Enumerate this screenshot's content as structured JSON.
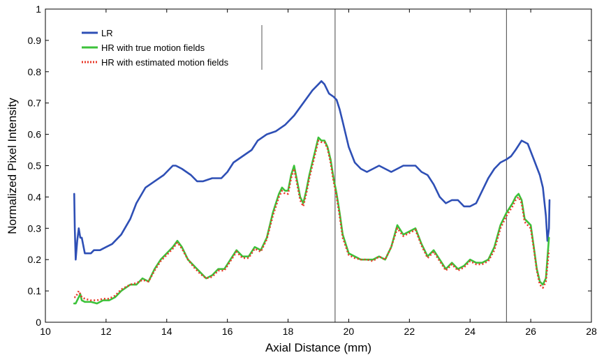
{
  "chart_data": {
    "type": "line",
    "title": "",
    "xlabel": "Axial Distance (mm)",
    "ylabel": "Normalized Pixel Intensity",
    "xlim": [
      10,
      28
    ],
    "ylim": [
      0,
      1
    ],
    "xticks": [
      10,
      12,
      14,
      16,
      18,
      20,
      22,
      24,
      26,
      28
    ],
    "yticks": [
      0,
      0.1,
      0.2,
      0.3,
      0.4,
      0.5,
      0.6,
      0.7,
      0.8,
      0.9,
      1
    ],
    "xtick_labels": [
      "10",
      "12",
      "14",
      "16",
      "18",
      "20",
      "22",
      "24",
      "26",
      "28"
    ],
    "ytick_labels": [
      "0",
      "0.1",
      "0.2",
      "0.3",
      "0.4",
      "0.5",
      "0.6",
      "0.7",
      "0.8",
      "0.9",
      "1"
    ],
    "grid": false,
    "legend_position": "top-left",
    "vertical_lines": [
      19.55,
      25.2
    ],
    "series": [
      {
        "name": "LR",
        "color": "#2e4fb5",
        "style": "solid",
        "x": [
          10.95,
          10.97,
          11.0,
          11.05,
          11.1,
          11.15,
          11.2,
          11.3,
          11.4,
          11.5,
          11.6,
          11.8,
          12.0,
          12.2,
          12.5,
          12.8,
          13.0,
          13.3,
          13.6,
          13.9,
          14.2,
          14.3,
          14.5,
          14.8,
          15.0,
          15.2,
          15.5,
          15.8,
          16.0,
          16.2,
          16.5,
          16.8,
          17.0,
          17.3,
          17.6,
          17.9,
          18.2,
          18.5,
          18.8,
          19.0,
          19.1,
          19.2,
          19.35,
          19.5,
          19.6,
          19.7,
          19.8,
          20.0,
          20.2,
          20.4,
          20.6,
          20.8,
          21.0,
          21.2,
          21.4,
          21.6,
          21.8,
          22.0,
          22.2,
          22.4,
          22.6,
          22.8,
          23.0,
          23.2,
          23.4,
          23.6,
          23.8,
          24.0,
          24.2,
          24.4,
          24.6,
          24.8,
          25.0,
          25.2,
          25.35,
          25.5,
          25.7,
          25.9,
          26.1,
          26.3,
          26.4,
          26.5,
          26.55,
          26.6,
          26.62
        ],
        "values": [
          0.41,
          0.3,
          0.2,
          0.26,
          0.3,
          0.27,
          0.27,
          0.22,
          0.22,
          0.22,
          0.23,
          0.23,
          0.24,
          0.25,
          0.28,
          0.33,
          0.38,
          0.43,
          0.45,
          0.47,
          0.5,
          0.5,
          0.49,
          0.47,
          0.45,
          0.45,
          0.46,
          0.46,
          0.48,
          0.51,
          0.53,
          0.55,
          0.58,
          0.6,
          0.61,
          0.63,
          0.66,
          0.7,
          0.74,
          0.76,
          0.77,
          0.76,
          0.73,
          0.72,
          0.71,
          0.68,
          0.64,
          0.56,
          0.51,
          0.49,
          0.48,
          0.49,
          0.5,
          0.49,
          0.48,
          0.49,
          0.5,
          0.5,
          0.5,
          0.48,
          0.47,
          0.44,
          0.4,
          0.38,
          0.39,
          0.39,
          0.37,
          0.37,
          0.38,
          0.42,
          0.46,
          0.49,
          0.51,
          0.52,
          0.53,
          0.55,
          0.58,
          0.57,
          0.52,
          0.47,
          0.43,
          0.34,
          0.26,
          0.3,
          0.39
        ]
      },
      {
        "name": "HR with true motion fields",
        "color": "#3cc23a",
        "style": "solid",
        "x": [
          10.95,
          11.0,
          11.1,
          11.15,
          11.2,
          11.3,
          11.5,
          11.7,
          11.9,
          12.1,
          12.3,
          12.5,
          12.8,
          13.0,
          13.2,
          13.4,
          13.6,
          13.8,
          14.0,
          14.2,
          14.35,
          14.5,
          14.7,
          14.9,
          15.1,
          15.3,
          15.5,
          15.7,
          15.9,
          16.1,
          16.3,
          16.5,
          16.7,
          16.9,
          17.1,
          17.3,
          17.5,
          17.7,
          17.8,
          17.9,
          18.0,
          18.1,
          18.2,
          18.3,
          18.4,
          18.5,
          18.6,
          18.7,
          18.8,
          18.9,
          19.0,
          19.1,
          19.2,
          19.3,
          19.4,
          19.5,
          19.6,
          19.7,
          19.8,
          20.0,
          20.2,
          20.4,
          20.6,
          20.8,
          21.0,
          21.2,
          21.4,
          21.6,
          21.8,
          22.0,
          22.2,
          22.4,
          22.6,
          22.8,
          23.0,
          23.2,
          23.4,
          23.6,
          23.8,
          24.0,
          24.2,
          24.4,
          24.6,
          24.8,
          25.0,
          25.2,
          25.4,
          25.5,
          25.6,
          25.7,
          25.8,
          25.9,
          26.0,
          26.1,
          26.2,
          26.3,
          26.4,
          26.5,
          26.6
        ],
        "values": [
          0.06,
          0.06,
          0.08,
          0.09,
          0.07,
          0.065,
          0.065,
          0.06,
          0.07,
          0.07,
          0.08,
          0.1,
          0.12,
          0.12,
          0.14,
          0.13,
          0.17,
          0.2,
          0.22,
          0.24,
          0.26,
          0.24,
          0.2,
          0.18,
          0.16,
          0.14,
          0.15,
          0.17,
          0.17,
          0.2,
          0.23,
          0.21,
          0.21,
          0.24,
          0.23,
          0.27,
          0.35,
          0.41,
          0.43,
          0.42,
          0.42,
          0.47,
          0.5,
          0.45,
          0.4,
          0.38,
          0.42,
          0.47,
          0.51,
          0.55,
          0.59,
          0.58,
          0.58,
          0.56,
          0.52,
          0.46,
          0.41,
          0.35,
          0.28,
          0.22,
          0.21,
          0.2,
          0.2,
          0.2,
          0.21,
          0.2,
          0.24,
          0.31,
          0.28,
          0.29,
          0.3,
          0.25,
          0.21,
          0.23,
          0.2,
          0.17,
          0.19,
          0.17,
          0.18,
          0.2,
          0.19,
          0.19,
          0.2,
          0.24,
          0.31,
          0.35,
          0.38,
          0.4,
          0.41,
          0.39,
          0.33,
          0.32,
          0.31,
          0.24,
          0.17,
          0.13,
          0.12,
          0.14,
          0.27
        ]
      },
      {
        "name": "HR with estimated motion fields",
        "color": "#e83a2a",
        "style": "dotted",
        "x": [
          10.95,
          11.0,
          11.1,
          11.15,
          11.2,
          11.3,
          11.5,
          11.7,
          11.9,
          12.1,
          12.3,
          12.5,
          12.8,
          13.0,
          13.2,
          13.4,
          13.6,
          13.8,
          14.0,
          14.2,
          14.35,
          14.5,
          14.7,
          14.9,
          15.1,
          15.3,
          15.5,
          15.7,
          15.9,
          16.1,
          16.3,
          16.5,
          16.7,
          16.9,
          17.1,
          17.3,
          17.5,
          17.7,
          17.8,
          17.9,
          18.0,
          18.1,
          18.2,
          18.3,
          18.4,
          18.5,
          18.6,
          18.7,
          18.8,
          18.9,
          19.0,
          19.1,
          19.2,
          19.3,
          19.4,
          19.5,
          19.6,
          19.7,
          19.8,
          20.0,
          20.2,
          20.4,
          20.6,
          20.8,
          21.0,
          21.2,
          21.4,
          21.6,
          21.8,
          22.0,
          22.2,
          22.4,
          22.6,
          22.8,
          23.0,
          23.2,
          23.4,
          23.6,
          23.8,
          24.0,
          24.2,
          24.4,
          24.6,
          24.8,
          25.0,
          25.2,
          25.4,
          25.5,
          25.6,
          25.7,
          25.8,
          25.9,
          26.0,
          26.1,
          26.2,
          26.3,
          26.4,
          26.5,
          26.6
        ],
        "values": [
          0.08,
          0.08,
          0.1,
          0.09,
          0.08,
          0.075,
          0.07,
          0.07,
          0.075,
          0.075,
          0.085,
          0.105,
          0.12,
          0.125,
          0.135,
          0.13,
          0.165,
          0.195,
          0.215,
          0.235,
          0.255,
          0.235,
          0.2,
          0.175,
          0.155,
          0.14,
          0.145,
          0.165,
          0.165,
          0.195,
          0.225,
          0.205,
          0.205,
          0.235,
          0.225,
          0.265,
          0.34,
          0.4,
          0.42,
          0.41,
          0.41,
          0.46,
          0.49,
          0.44,
          0.39,
          0.37,
          0.41,
          0.46,
          0.5,
          0.54,
          0.58,
          0.575,
          0.575,
          0.555,
          0.51,
          0.45,
          0.4,
          0.34,
          0.27,
          0.215,
          0.205,
          0.2,
          0.2,
          0.195,
          0.21,
          0.2,
          0.24,
          0.3,
          0.275,
          0.285,
          0.295,
          0.245,
          0.205,
          0.225,
          0.195,
          0.165,
          0.185,
          0.165,
          0.175,
          0.195,
          0.185,
          0.185,
          0.195,
          0.23,
          0.3,
          0.34,
          0.37,
          0.39,
          0.4,
          0.38,
          0.32,
          0.31,
          0.3,
          0.235,
          0.165,
          0.12,
          0.11,
          0.13,
          0.23
        ]
      }
    ]
  }
}
